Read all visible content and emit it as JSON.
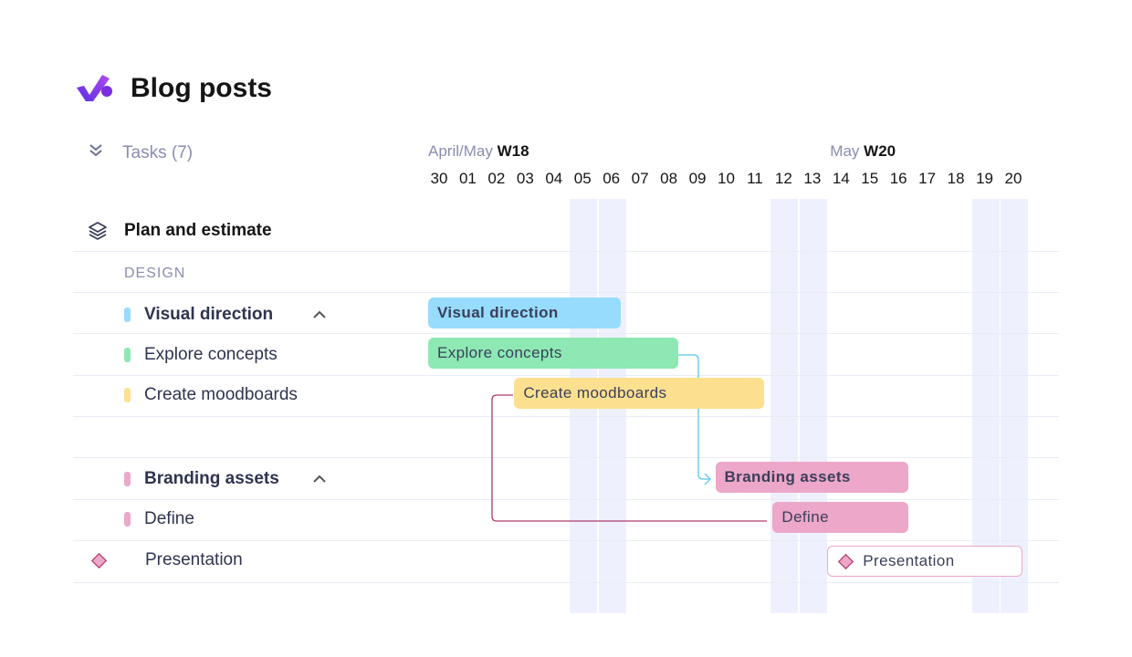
{
  "header": {
    "title": "Blog posts",
    "logo": "check-logo"
  },
  "tasks_header": {
    "label": "Tasks (7)",
    "icon": "double-chevron-down-icon"
  },
  "timeline": {
    "weeks": [
      {
        "month": "April/May",
        "week": "W18",
        "start": "30"
      },
      {
        "month": "May",
        "week": "W20",
        "start": "14"
      }
    ],
    "days": [
      "30",
      "01",
      "02",
      "03",
      "04",
      "05",
      "06",
      "07",
      "08",
      "09",
      "10",
      "11",
      "12",
      "13",
      "14",
      "15",
      "16",
      "17",
      "18",
      "19",
      "20"
    ],
    "weekend_days": [
      "05",
      "06",
      "12",
      "13",
      "19",
      "20"
    ]
  },
  "group": {
    "label": "Plan and estimate",
    "icon": "layers-icon"
  },
  "section": {
    "label": "DESIGN"
  },
  "rows": [
    {
      "label": "Visual direction",
      "bold": true,
      "color": "#97dcfd",
      "start": "30",
      "end": "06",
      "collapsible": true
    },
    {
      "label": "Explore concepts",
      "bold": false,
      "color": "#8de8b4",
      "start": "30",
      "end": "08"
    },
    {
      "label": "Create moodboards",
      "bold": false,
      "color": "#fde08f",
      "start": "03",
      "end": "11"
    },
    {
      "label": "",
      "spacer": true
    },
    {
      "label": "Branding assets",
      "bold": true,
      "color": "#eca7c9",
      "start": "10",
      "end": "16",
      "collapsible": true
    },
    {
      "label": "Define",
      "bold": false,
      "color": "#eca7c9",
      "start": "12",
      "end": "16"
    },
    {
      "label": "Presentation",
      "milestone": true,
      "color": "#eca7c9",
      "start": "14",
      "end": "20"
    }
  ],
  "dependency_colors": {
    "explore_to_branding": "#6fcdf5",
    "moodboards_to_define": "#b03a6d"
  }
}
